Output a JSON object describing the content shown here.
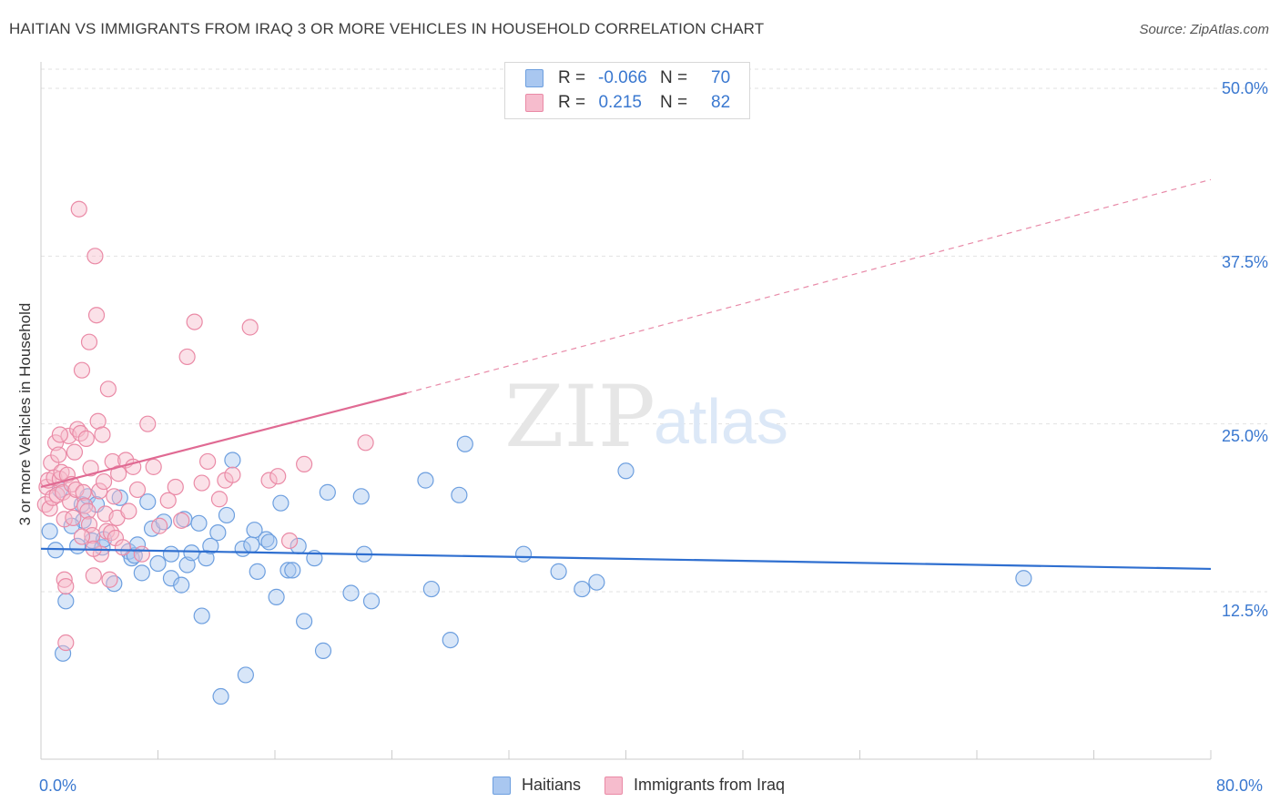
{
  "header": {
    "title": "HAITIAN VS IMMIGRANTS FROM IRAQ 3 OR MORE VEHICLES IN HOUSEHOLD CORRELATION CHART",
    "source": "Source: ZipAtlas.com"
  },
  "watermark": {
    "zip": "ZIP",
    "atlas": "atlas"
  },
  "legend_top": {
    "rows": [
      {
        "r_label": "R =",
        "r_value": "-0.066",
        "n_label": "N =",
        "n_value": "70",
        "color": "#a9c7f0",
        "border": "#6d9fdf"
      },
      {
        "r_label": "R =",
        "r_value": "0.215",
        "n_label": "N =",
        "n_value": "82",
        "color": "#f6bccd",
        "border": "#ea8aa6"
      }
    ]
  },
  "legend_bottom": {
    "items": [
      {
        "label": "Haitians",
        "color": "#a9c7f0",
        "border": "#6d9fdf"
      },
      {
        "label": "Immigrants from Iraq",
        "color": "#f6bccd",
        "border": "#ea8aa6"
      }
    ]
  },
  "axes": {
    "ylabel": "3 or more Vehicles in Household",
    "y_ticks": [
      "12.5%",
      "25.0%",
      "37.5%",
      "50.0%"
    ],
    "x_ticks": [
      "0.0%",
      "80.0%"
    ]
  },
  "chart_data": {
    "type": "scatter",
    "title": "HAITIAN VS IMMIGRANTS FROM IRAQ 3 OR MORE VEHICLES IN HOUSEHOLD CORRELATION CHART",
    "xlabel": "",
    "ylabel": "3 or more Vehicles in Household",
    "xlim": [
      0,
      80
    ],
    "ylim": [
      0,
      52
    ],
    "x_unit": "%",
    "y_unit": "%",
    "y_ticks": [
      12.5,
      25.0,
      37.5,
      50.0
    ],
    "x_ticks": [
      0,
      80
    ],
    "grid": "horizontal dashed",
    "legend_position": "bottom-center",
    "series": [
      {
        "name": "Haitians",
        "color": "#6d9fdf",
        "fill": "#a9c7f0",
        "r": -0.066,
        "n": 70,
        "trend": {
          "x": [
            0,
            80
          ],
          "y": [
            15.7,
            14.2
          ],
          "style": "solid"
        },
        "points": [
          [
            0.6,
            17.0
          ],
          [
            1.0,
            15.6
          ],
          [
            1.3,
            20.1
          ],
          [
            1.5,
            7.9
          ],
          [
            1.7,
            11.8
          ],
          [
            2.5,
            15.9
          ],
          [
            2.8,
            19.0
          ],
          [
            2.9,
            17.8
          ],
          [
            3.2,
            19.6
          ],
          [
            3.5,
            16.3
          ],
          [
            4.2,
            15.8
          ],
          [
            4.3,
            16.4
          ],
          [
            5.0,
            13.1
          ],
          [
            5.4,
            19.5
          ],
          [
            6.0,
            15.5
          ],
          [
            6.2,
            15.0
          ],
          [
            6.4,
            15.2
          ],
          [
            6.6,
            16.0
          ],
          [
            6.9,
            13.9
          ],
          [
            7.3,
            19.2
          ],
          [
            7.6,
            17.2
          ],
          [
            8.0,
            14.6
          ],
          [
            8.4,
            17.7
          ],
          [
            8.9,
            15.3
          ],
          [
            8.9,
            13.5
          ],
          [
            9.6,
            13.0
          ],
          [
            9.8,
            17.9
          ],
          [
            10.0,
            14.5
          ],
          [
            10.3,
            15.4
          ],
          [
            10.8,
            17.6
          ],
          [
            11.0,
            10.7
          ],
          [
            11.3,
            15.0
          ],
          [
            11.6,
            15.9
          ],
          [
            12.1,
            16.9
          ],
          [
            12.3,
            4.7
          ],
          [
            12.7,
            18.2
          ],
          [
            13.1,
            22.3
          ],
          [
            13.8,
            15.7
          ],
          [
            14.0,
            6.3
          ],
          [
            14.4,
            16.0
          ],
          [
            14.8,
            14.0
          ],
          [
            15.4,
            16.4
          ],
          [
            15.6,
            16.2
          ],
          [
            16.1,
            12.1
          ],
          [
            16.4,
            19.1
          ],
          [
            16.9,
            14.1
          ],
          [
            17.2,
            14.1
          ],
          [
            17.6,
            15.9
          ],
          [
            18.0,
            10.3
          ],
          [
            18.7,
            15.0
          ],
          [
            19.3,
            8.1
          ],
          [
            19.6,
            19.9
          ],
          [
            21.2,
            12.4
          ],
          [
            21.9,
            19.6
          ],
          [
            22.1,
            15.3
          ],
          [
            22.6,
            11.8
          ],
          [
            26.3,
            20.8
          ],
          [
            26.7,
            12.7
          ],
          [
            28.0,
            8.9
          ],
          [
            28.6,
            19.7
          ],
          [
            29.0,
            23.5
          ],
          [
            33.0,
            15.3
          ],
          [
            35.4,
            14.0
          ],
          [
            37.0,
            12.7
          ],
          [
            38.0,
            13.2
          ],
          [
            40.0,
            21.5
          ],
          [
            67.2,
            13.5
          ],
          [
            3.8,
            19.0
          ],
          [
            2.1,
            17.4
          ],
          [
            14.6,
            17.1
          ]
        ]
      },
      {
        "name": "Immigrants from Iraq",
        "color": "#ea8aa6",
        "fill": "#f6bccd",
        "r": 0.215,
        "n": 82,
        "trend": {
          "x": [
            0,
            25
          ],
          "y": [
            20.3,
            27.3
          ],
          "style": "solid",
          "dashed_to": {
            "x": 80,
            "y": 43.2
          }
        },
        "points": [
          [
            0.3,
            19.0
          ],
          [
            0.4,
            20.3
          ],
          [
            0.5,
            20.8
          ],
          [
            0.6,
            18.7
          ],
          [
            0.7,
            22.1
          ],
          [
            0.8,
            19.5
          ],
          [
            0.9,
            21.0
          ],
          [
            1.0,
            23.6
          ],
          [
            1.1,
            19.7
          ],
          [
            1.2,
            22.7
          ],
          [
            1.3,
            20.9
          ],
          [
            1.4,
            21.4
          ],
          [
            1.5,
            19.9
          ],
          [
            1.6,
            17.9
          ],
          [
            1.6,
            13.4
          ],
          [
            1.7,
            12.9
          ],
          [
            1.7,
            8.7
          ],
          [
            1.8,
            21.2
          ],
          [
            1.9,
            24.1
          ],
          [
            2.0,
            19.2
          ],
          [
            2.1,
            20.5
          ],
          [
            2.2,
            18.0
          ],
          [
            2.3,
            22.9
          ],
          [
            2.4,
            20.1
          ],
          [
            2.5,
            24.6
          ],
          [
            2.6,
            41.0
          ],
          [
            2.7,
            24.3
          ],
          [
            2.8,
            29.0
          ],
          [
            2.9,
            19.9
          ],
          [
            3.0,
            18.9
          ],
          [
            3.1,
            23.9
          ],
          [
            3.2,
            18.5
          ],
          [
            3.3,
            17.5
          ],
          [
            3.4,
            21.7
          ],
          [
            3.5,
            16.7
          ],
          [
            3.6,
            13.7
          ],
          [
            3.7,
            37.5
          ],
          [
            3.8,
            33.1
          ],
          [
            3.9,
            25.2
          ],
          [
            4.0,
            20.0
          ],
          [
            4.1,
            15.3
          ],
          [
            4.2,
            24.2
          ],
          [
            4.3,
            20.7
          ],
          [
            4.4,
            18.3
          ],
          [
            4.5,
            17.0
          ],
          [
            4.6,
            27.6
          ],
          [
            4.7,
            13.4
          ],
          [
            4.8,
            16.9
          ],
          [
            4.9,
            22.2
          ],
          [
            5.1,
            16.5
          ],
          [
            5.2,
            18.0
          ],
          [
            5.3,
            21.3
          ],
          [
            3.3,
            31.1
          ],
          [
            5.6,
            15.8
          ],
          [
            5.8,
            22.3
          ],
          [
            6.0,
            18.5
          ],
          [
            6.3,
            21.8
          ],
          [
            6.6,
            20.1
          ],
          [
            6.9,
            15.3
          ],
          [
            7.3,
            25.0
          ],
          [
            7.7,
            21.8
          ],
          [
            8.1,
            17.4
          ],
          [
            8.7,
            19.3
          ],
          [
            9.2,
            20.3
          ],
          [
            9.6,
            17.8
          ],
          [
            10.0,
            30.0
          ],
          [
            10.5,
            32.6
          ],
          [
            11.0,
            20.6
          ],
          [
            11.4,
            22.2
          ],
          [
            12.2,
            19.4
          ],
          [
            12.6,
            20.8
          ],
          [
            13.1,
            21.2
          ],
          [
            14.3,
            32.2
          ],
          [
            15.6,
            20.8
          ],
          [
            16.2,
            21.1
          ],
          [
            17.0,
            16.3
          ],
          [
            18.0,
            22.0
          ],
          [
            22.2,
            23.6
          ],
          [
            2.8,
            16.6
          ],
          [
            3.6,
            15.7
          ],
          [
            5.0,
            19.6
          ],
          [
            1.3,
            24.2
          ]
        ]
      }
    ]
  }
}
